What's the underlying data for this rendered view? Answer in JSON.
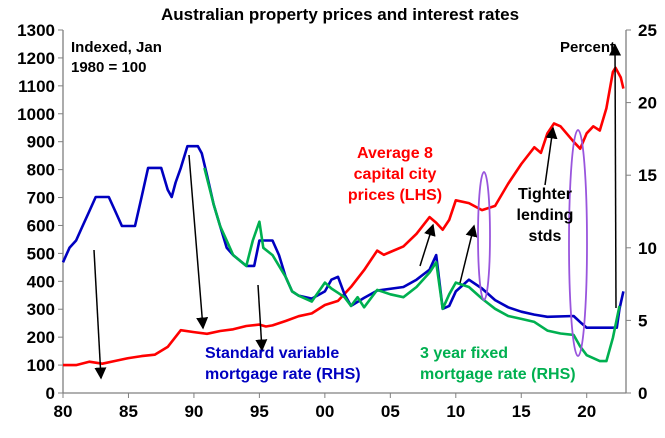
{
  "chart_data": {
    "type": "line",
    "title": "Australian property prices and interest rates",
    "left_axis_note": [
      "Indexed, Jan",
      "1980 = 100"
    ],
    "right_axis_note": "Percent",
    "xlim": [
      1980,
      2023
    ],
    "x_ticks": [
      {
        "v": 1980,
        "label": "80"
      },
      {
        "v": 1985,
        "label": "85"
      },
      {
        "v": 1990,
        "label": "90"
      },
      {
        "v": 1995,
        "label": "95"
      },
      {
        "v": 2000,
        "label": "00"
      },
      {
        "v": 2005,
        "label": "05"
      },
      {
        "v": 2010,
        "label": "10"
      },
      {
        "v": 2015,
        "label": "15"
      },
      {
        "v": 2020,
        "label": "20"
      }
    ],
    "ylim_left": [
      0,
      1300
    ],
    "y_ticks_left": [
      "0",
      "100",
      "200",
      "300",
      "400",
      "500",
      "600",
      "700",
      "800",
      "900",
      "1000",
      "1100",
      "1200",
      "1300"
    ],
    "ylim_right": [
      0,
      25
    ],
    "y_ticks_right": [
      "0",
      "5",
      "10",
      "15",
      "20",
      "25"
    ],
    "grid": false,
    "series": [
      {
        "key": "prices",
        "name": [
          "Average 8",
          "capital city",
          "prices (LHS)"
        ],
        "axis": "left",
        "color": "#ff0000",
        "x": [
          1980,
          1981,
          1982,
          1983,
          1984,
          1985,
          1986,
          1987,
          1988,
          1989,
          1990,
          1991,
          1992,
          1993,
          1994,
          1995,
          1995.5,
          1996,
          1997,
          1998,
          1999,
          2000,
          2001,
          2002,
          2003,
          2004,
          2004.5,
          2005,
          2006,
          2007,
          2008,
          2008.5,
          2009,
          2009.5,
          2010,
          2011,
          2012,
          2013,
          2014,
          2015,
          2016,
          2016.5,
          2017,
          2017.5,
          2018,
          2019,
          2019.5,
          2020,
          2020.5,
          2021,
          2021.5,
          2022,
          2022.2,
          2022.6,
          2022.8
        ],
        "y": [
          100,
          100,
          112,
          105,
          115,
          125,
          132,
          137,
          165,
          225,
          218,
          212,
          222,
          228,
          240,
          245,
          238,
          242,
          258,
          275,
          285,
          315,
          330,
          380,
          440,
          510,
          495,
          505,
          525,
          570,
          630,
          610,
          585,
          620,
          690,
          680,
          655,
          670,
          750,
          820,
          880,
          860,
          930,
          965,
          955,
          900,
          875,
          930,
          955,
          940,
          1020,
          1150,
          1165,
          1130,
          1090
        ]
      },
      {
        "key": "variable",
        "name": [
          "Standard variable",
          "mortgage rate (RHS)"
        ],
        "axis": "right",
        "color": "#0000c0",
        "x": [
          1980,
          1980.5,
          1981,
          1981.5,
          1982,
          1982.5,
          1983.5,
          1984,
          1984.5,
          1985.5,
          1986,
          1986.5,
          1987.5,
          1988,
          1988.3,
          1988.6,
          1989,
          1989.5,
          1990.3,
          1990.6,
          1991,
          1991.5,
          1992,
          1992.5,
          1993,
          1994,
          1994.6,
          1995,
          1996,
          1996.5,
          1997,
          1997.5,
          1998,
          1999,
          2000,
          2000.5,
          2001,
          2001.5,
          2002,
          2003,
          2004,
          2006,
          2007,
          2008,
          2008.5,
          2009,
          2009.5,
          2010,
          2011,
          2012,
          2013,
          2014,
          2015,
          2016,
          2017,
          2019,
          2019.6,
          2020,
          2022.3,
          2022.5,
          2022.8
        ],
        "y": [
          9.0,
          10.0,
          10.5,
          11.5,
          12.5,
          13.5,
          13.5,
          12.5,
          11.5,
          11.5,
          13.5,
          15.5,
          15.5,
          14,
          13.5,
          14.5,
          15.5,
          17,
          17,
          16.5,
          15,
          13,
          11.5,
          10,
          9.5,
          8.75,
          8.75,
          10.5,
          10.5,
          9.5,
          8.0,
          7.0,
          6.7,
          6.5,
          7.0,
          7.8,
          8.0,
          6.8,
          6.0,
          6.55,
          7.05,
          7.3,
          7.8,
          8.5,
          9.5,
          5.8,
          6.0,
          7.0,
          7.8,
          7.2,
          6.4,
          5.9,
          5.6,
          5.4,
          5.25,
          5.3,
          4.8,
          4.5,
          4.5,
          5.8,
          7.0
        ]
      },
      {
        "key": "fixed",
        "name": [
          "3 year fixed",
          "mortgage rate (RHS)"
        ],
        "axis": "right",
        "color": "#00b050",
        "x": [
          1990.8,
          1991.5,
          1992,
          1992.5,
          1993,
          1994,
          1994.5,
          1995,
          1995.3,
          1996,
          1997,
          1997.5,
          1998,
          1999,
          2000,
          2000.5,
          2001,
          2001.5,
          2002,
          2002.5,
          2003,
          2004,
          2005,
          2006,
          2007,
          2008,
          2008.5,
          2009,
          2009.5,
          2010,
          2011,
          2012,
          2013,
          2014,
          2015,
          2016,
          2017,
          2018,
          2019,
          2019.5,
          2020,
          2021,
          2021.5,
          2022,
          2022.5
        ],
        "y": [
          15.5,
          13,
          11.5,
          10.5,
          9.5,
          8.75,
          10.5,
          11.8,
          10,
          9.5,
          8,
          7,
          6.7,
          6.3,
          7.6,
          7.2,
          6.9,
          6.6,
          6.0,
          6.6,
          5.9,
          7.1,
          6.8,
          6.6,
          7.3,
          8.3,
          9.0,
          5.8,
          6.8,
          7.6,
          7.3,
          6.5,
          5.8,
          5.3,
          5.1,
          4.9,
          4.3,
          4.1,
          4.0,
          3.2,
          2.6,
          2.2,
          2.2,
          3.8,
          6.0
        ]
      }
    ],
    "annotations": {
      "tighter_lending": [
        "Tighter",
        "lending",
        "stds"
      ]
    }
  }
}
